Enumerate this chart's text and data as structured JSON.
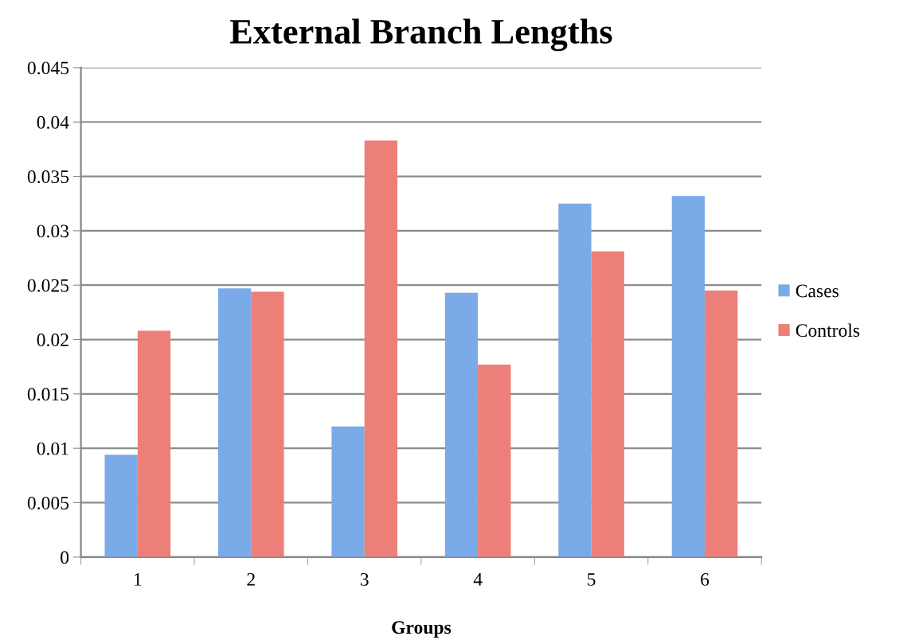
{
  "chart_data": {
    "type": "bar",
    "title": "External Branch Lengths",
    "xlabel": "Groups",
    "categories": [
      "1",
      "2",
      "3",
      "4",
      "5",
      "6"
    ],
    "series": [
      {
        "name": "Cases",
        "color": "#7aaae8",
        "values": [
          0.0094,
          0.0247,
          0.012,
          0.0243,
          0.0325,
          0.0332
        ]
      },
      {
        "name": "Controls",
        "color": "#ec7f77",
        "values": [
          0.0208,
          0.0244,
          0.0383,
          0.0177,
          0.0281,
          0.0245
        ]
      }
    ],
    "ylim": [
      0,
      0.045
    ],
    "yticks": [
      0,
      0.005,
      0.01,
      0.015,
      0.02,
      0.025,
      0.03,
      0.035,
      0.04,
      0.045
    ],
    "grid": "y",
    "legend": "right"
  }
}
